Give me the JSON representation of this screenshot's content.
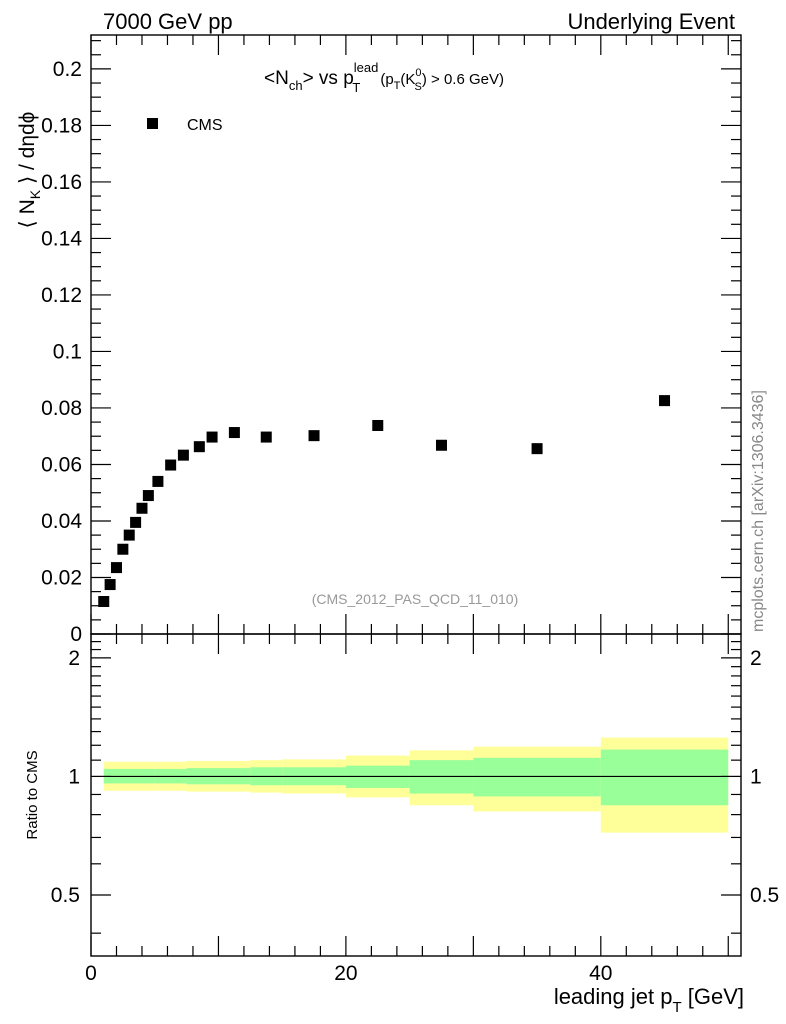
{
  "header": {
    "left": "7000 GeV pp",
    "right": "Underlying Event"
  },
  "title": {
    "n_main": "<N",
    "n_sub": "ch",
    "vs": "> vs p",
    "lead_sup": "lead",
    "t_sub": "T",
    "paren_open": "(p",
    "paren_t": "T",
    "k_open": "(K",
    "k_sup": "0",
    "k_sub": "S",
    "cut": ") > 0.6 GeV)"
  },
  "legend": {
    "label": "CMS"
  },
  "reference": "(CMS_2012_PAS_QCD_11_010)",
  "side_text": "mcplots.cern.ch [arXiv:1306.3436]",
  "top_ylabel": {
    "a": "⟨ N",
    "sub": "K",
    "b": " ⟩ / dηdϕ"
  },
  "ratio_ylabel": "Ratio to CMS",
  "xlabel": {
    "main": "leading jet p",
    "sub": "T",
    "unit": " [GeV]"
  },
  "colors": {
    "marker": "#000000",
    "band_outer": "#ffff99",
    "band_inner": "#99ff99"
  },
  "chart_data": [
    {
      "type": "scatter",
      "panel": "main",
      "series": [
        {
          "name": "CMS",
          "marker": "square",
          "x": [
            1.0,
            1.5,
            2.0,
            2.5,
            3.0,
            3.5,
            4.0,
            4.5,
            5.25,
            6.25,
            7.25,
            8.5,
            9.5,
            11.25,
            13.75,
            17.5,
            22.5,
            27.5,
            35.0,
            45.0
          ],
          "y": [
            0.0115,
            0.0175,
            0.0235,
            0.03,
            0.035,
            0.0395,
            0.0445,
            0.049,
            0.054,
            0.0598,
            0.0633,
            0.0663,
            0.0697,
            0.0713,
            0.0697,
            0.0702,
            0.0738,
            0.0668,
            0.0656,
            0.0826
          ]
        }
      ],
      "xlim": [
        0,
        51
      ],
      "ylim": [
        0,
        0.212
      ],
      "yticks": [
        "0",
        "0.02",
        "0.04",
        "0.06",
        "0.08",
        "0.1",
        "0.12",
        "0.14",
        "0.16",
        "0.18",
        "0.2"
      ],
      "ylabel": "⟨ N_K ⟩ / dηdϕ"
    },
    {
      "type": "area",
      "panel": "ratio",
      "ylabel": "Ratio to CMS",
      "xlabel": "leading jet p_T [GeV]",
      "xlim": [
        0,
        51
      ],
      "ylim": [
        0.35,
        2.3
      ],
      "log_y": true,
      "yticks": [
        "0.5",
        "1",
        "2"
      ],
      "xticks": [
        "0",
        "20",
        "40"
      ],
      "reference_line": 1,
      "bands": [
        {
          "name": "outer",
          "edges": [
            1,
            5,
            7.5,
            10,
            12.5,
            15,
            20,
            25,
            30,
            40,
            50
          ],
          "low": [
            0.92,
            0.92,
            0.915,
            0.915,
            0.91,
            0.905,
            0.885,
            0.845,
            0.815,
            0.72
          ],
          "high": [
            1.09,
            1.09,
            1.095,
            1.095,
            1.1,
            1.105,
            1.13,
            1.165,
            1.19,
            1.255
          ]
        },
        {
          "name": "inner",
          "edges": [
            1,
            5,
            7.5,
            10,
            12.5,
            15,
            20,
            25,
            30,
            40,
            50
          ],
          "low": [
            0.96,
            0.96,
            0.955,
            0.955,
            0.95,
            0.95,
            0.935,
            0.905,
            0.89,
            0.845
          ],
          "high": [
            1.045,
            1.045,
            1.05,
            1.05,
            1.055,
            1.055,
            1.065,
            1.1,
            1.115,
            1.17
          ]
        }
      ]
    }
  ]
}
